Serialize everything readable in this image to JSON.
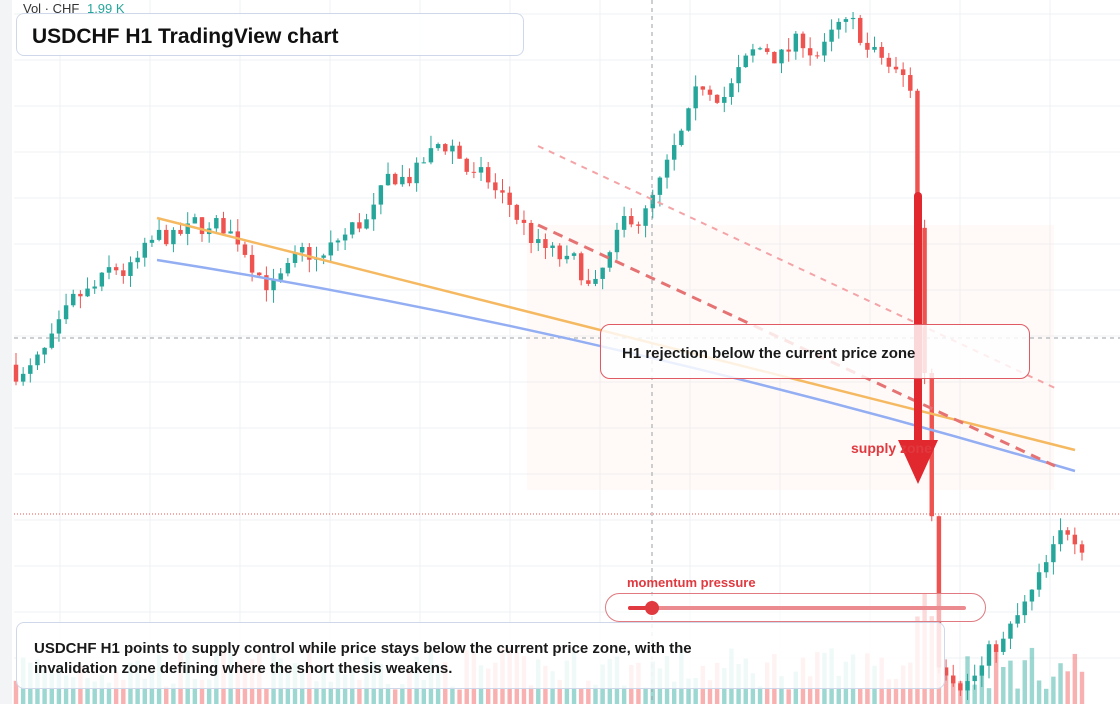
{
  "volume": {
    "label": "Vol · CHF",
    "value": "1.99 K"
  },
  "colors": {
    "up": "#26a69a",
    "down": "#ef5350",
    "orange_line": "#f5b962",
    "blue_line": "#93aef2",
    "annotation": "#e0393f",
    "grid": "#eef0f3"
  },
  "annotations": {
    "callout": "H1 rejection below the current price zone",
    "supply": "supply zone",
    "momentum_label": "momentum pressure",
    "momentum_level": 0.07,
    "summary": "USDCHF H1 points to supply control while price stays below the current price zone, with the invalidation zone defining where the short thesis weakens."
  },
  "chart_data": {
    "type": "candlestick",
    "title": "USDCHF H1 TradingView chart",
    "symbol": "USDCHF",
    "timeframe": "H1",
    "bar_count": 150,
    "phases": [
      {
        "bars": 22,
        "trend": 0.0
      },
      {
        "bars": 22,
        "trend": -0.4
      },
      {
        "bars": 18,
        "trend": 0.6
      },
      {
        "bars": 20,
        "trend": -1.6
      },
      {
        "bars": 20,
        "trend": 1.1
      },
      {
        "bars": 14,
        "trend": 0.2
      },
      {
        "bars": 10,
        "trend": -1.5
      },
      {
        "bars": 4,
        "trend": -22
      },
      {
        "bars": 20,
        "trend": 0.9
      }
    ],
    "grid": true,
    "legend": "none"
  }
}
